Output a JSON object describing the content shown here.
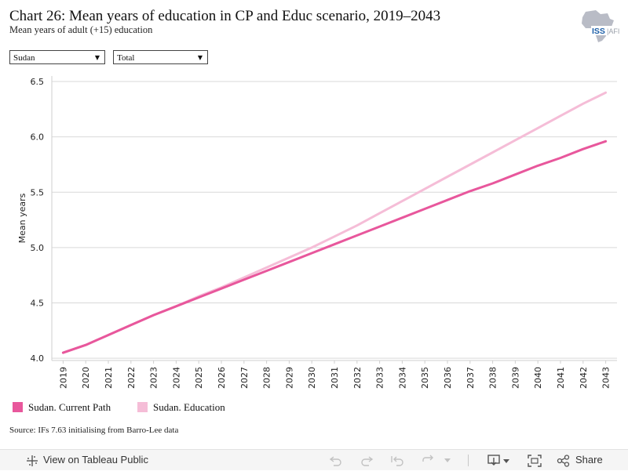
{
  "header": {
    "title": "Chart 26: Mean years of education in CP and Educ scenario, 2019–2043",
    "subtitle": "Mean years of adult (+15) education",
    "logo_text": "ISS|AFI"
  },
  "filters": {
    "country": "Sudan",
    "sex": "Total"
  },
  "chart_data": {
    "type": "line",
    "title": "Chart 26: Mean years of education in CP and Educ scenario, 2019–2043",
    "subtitle": "Mean years of adult (+15) education",
    "xlabel": "",
    "ylabel": "Mean years",
    "x": [
      2019,
      2020,
      2021,
      2022,
      2023,
      2024,
      2025,
      2026,
      2027,
      2028,
      2029,
      2030,
      2031,
      2032,
      2033,
      2034,
      2035,
      2036,
      2037,
      2038,
      2039,
      2040,
      2041,
      2042,
      2043
    ],
    "ylim": [
      3.98,
      6.55
    ],
    "yticks": [
      4.0,
      4.5,
      5.0,
      5.5,
      6.0,
      6.5
    ],
    "ytick_labels": [
      "4.0",
      "4.5",
      "5.0",
      "5.5",
      "6.0",
      "6.5"
    ],
    "grid": "horizontal",
    "legend_position": "bottom-left",
    "series": [
      {
        "name": "Sudan. Current Path",
        "color": "#e8579c",
        "values": [
          4.05,
          4.12,
          4.21,
          4.3,
          4.39,
          4.47,
          4.55,
          4.63,
          4.71,
          4.79,
          4.87,
          4.95,
          5.03,
          5.11,
          5.19,
          5.27,
          5.35,
          5.43,
          5.51,
          5.58,
          5.66,
          5.74,
          5.81,
          5.89,
          5.96
        ]
      },
      {
        "name": "Sudan. Education",
        "color": "#f5bdd7",
        "values": [
          4.05,
          4.12,
          4.21,
          4.3,
          4.39,
          4.47,
          4.56,
          4.64,
          4.73,
          4.82,
          4.91,
          5.0,
          5.1,
          5.2,
          5.31,
          5.42,
          5.53,
          5.64,
          5.75,
          5.86,
          5.97,
          6.08,
          6.19,
          6.3,
          6.4
        ]
      }
    ]
  },
  "legend": {
    "items": [
      {
        "label": "Sudan. Current Path",
        "color": "#e8579c"
      },
      {
        "label": "Sudan. Education",
        "color": "#f5bdd7"
      }
    ]
  },
  "footer": {
    "source": "Source: IFs 7.63 initialising from Barro-Lee data"
  },
  "toolbar": {
    "view_label": "View on Tableau Public",
    "share_label": "Share",
    "icons": [
      "tableau-icon",
      "undo-icon",
      "redo-icon",
      "revert-icon",
      "refresh-icon",
      "pause-icon",
      "download-icon",
      "fullscreen-icon",
      "share-icon"
    ]
  }
}
